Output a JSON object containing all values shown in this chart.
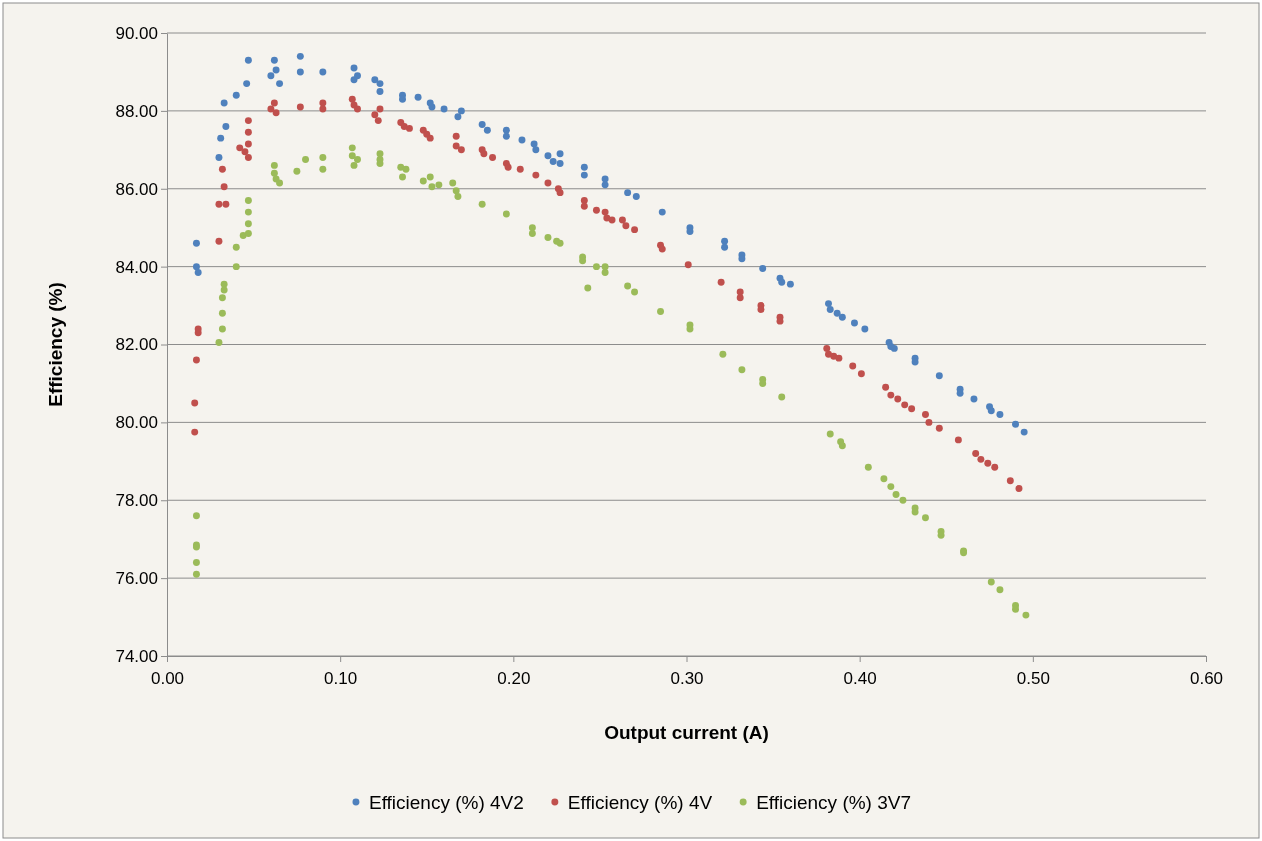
{
  "chart_data": {
    "type": "scatter",
    "xlabel": "Output current (A)",
    "ylabel": "Efficiency (%)",
    "xlim": [
      0,
      0.6
    ],
    "xticks": [
      {
        "value": 0,
        "label": "0.00"
      },
      {
        "value": 0.1,
        "label": "0.10"
      },
      {
        "value": 0.2,
        "label": "0.20"
      },
      {
        "value": 0.3,
        "label": "0.30"
      },
      {
        "value": 0.4,
        "label": "0.40"
      },
      {
        "value": 0.5,
        "label": "0.50"
      },
      {
        "value": 0.6,
        "label": "0.60"
      }
    ],
    "ylim": [
      74,
      90
    ],
    "yticks": [
      {
        "value": 74,
        "label": "74.00"
      },
      {
        "value": 76,
        "label": "76.00"
      },
      {
        "value": 78,
        "label": "78.00"
      },
      {
        "value": 80,
        "label": "80.00"
      },
      {
        "value": 82,
        "label": "82.00"
      },
      {
        "value": 84,
        "label": "84.00"
      },
      {
        "value": 86,
        "label": "86.00"
      },
      {
        "value": 88,
        "label": "88.00"
      },
      {
        "value": 90,
        "label": "90.00"
      }
    ],
    "grid": "y",
    "legend": "bottom",
    "marker": "circle",
    "series": [
      {
        "name": "Efficiency (%) 4V2",
        "color": "#4f81bd",
        "x": [
          0.017,
          0.017,
          0.018,
          0.03,
          0.031,
          0.033,
          0.034,
          0.04,
          0.046,
          0.047,
          0.06,
          0.062,
          0.063,
          0.065,
          0.077,
          0.077,
          0.09,
          0.108,
          0.108,
          0.11,
          0.12,
          0.123,
          0.123,
          0.136,
          0.136,
          0.145,
          0.152,
          0.153,
          0.16,
          0.168,
          0.17,
          0.182,
          0.185,
          0.196,
          0.196,
          0.205,
          0.212,
          0.213,
          0.22,
          0.223,
          0.227,
          0.227,
          0.241,
          0.241,
          0.253,
          0.253,
          0.266,
          0.271,
          0.286,
          0.302,
          0.302,
          0.322,
          0.322,
          0.332,
          0.332,
          0.344,
          0.354,
          0.355,
          0.36,
          0.382,
          0.383,
          0.387,
          0.39,
          0.397,
          0.403,
          0.417,
          0.418,
          0.42,
          0.432,
          0.432,
          0.446,
          0.458,
          0.458,
          0.466,
          0.475,
          0.476,
          0.481,
          0.49,
          0.495
        ],
        "values": [
          84.6,
          84.0,
          83.85,
          86.8,
          87.3,
          88.2,
          87.6,
          88.4,
          88.7,
          89.3,
          88.9,
          89.3,
          89.05,
          88.7,
          89.4,
          89.0,
          89.0,
          89.1,
          88.8,
          88.9,
          88.8,
          88.5,
          88.7,
          88.4,
          88.3,
          88.35,
          88.2,
          88.1,
          88.05,
          87.85,
          88.0,
          87.65,
          87.5,
          87.5,
          87.35,
          87.25,
          87.15,
          87.0,
          86.85,
          86.7,
          86.9,
          86.65,
          86.55,
          86.35,
          86.25,
          86.1,
          85.9,
          85.8,
          85.4,
          85.0,
          84.9,
          84.65,
          84.5,
          84.3,
          84.2,
          83.95,
          83.7,
          83.6,
          83.55,
          83.05,
          82.9,
          82.8,
          82.7,
          82.55,
          82.4,
          82.05,
          81.95,
          81.9,
          81.65,
          81.55,
          81.2,
          80.85,
          80.75,
          80.6,
          80.4,
          80.3,
          80.2,
          79.95,
          79.75
        ]
      },
      {
        "name": "Efficiency (%) 4V",
        "color": "#c0504d",
        "x": [
          0.016,
          0.016,
          0.017,
          0.018,
          0.018,
          0.03,
          0.03,
          0.032,
          0.033,
          0.034,
          0.042,
          0.045,
          0.047,
          0.047,
          0.047,
          0.047,
          0.06,
          0.062,
          0.063,
          0.077,
          0.09,
          0.09,
          0.107,
          0.108,
          0.11,
          0.12,
          0.122,
          0.123,
          0.135,
          0.137,
          0.14,
          0.148,
          0.15,
          0.152,
          0.167,
          0.167,
          0.17,
          0.182,
          0.183,
          0.188,
          0.196,
          0.197,
          0.204,
          0.213,
          0.22,
          0.226,
          0.227,
          0.241,
          0.241,
          0.248,
          0.253,
          0.254,
          0.257,
          0.263,
          0.265,
          0.27,
          0.285,
          0.286,
          0.301,
          0.32,
          0.331,
          0.331,
          0.343,
          0.343,
          0.354,
          0.354,
          0.381,
          0.382,
          0.385,
          0.388,
          0.396,
          0.401,
          0.415,
          0.418,
          0.422,
          0.426,
          0.43,
          0.438,
          0.44,
          0.446,
          0.457,
          0.467,
          0.47,
          0.474,
          0.478,
          0.487,
          0.492
        ],
        "values": [
          80.5,
          79.75,
          81.6,
          82.3,
          82.4,
          84.65,
          85.6,
          86.5,
          86.05,
          85.6,
          87.05,
          86.95,
          87.75,
          87.45,
          87.15,
          86.8,
          88.05,
          88.2,
          87.95,
          88.1,
          88.2,
          88.05,
          88.3,
          88.15,
          88.05,
          87.9,
          87.75,
          88.05,
          87.7,
          87.6,
          87.55,
          87.5,
          87.4,
          87.3,
          87.35,
          87.1,
          87.0,
          87.0,
          86.9,
          86.8,
          86.65,
          86.55,
          86.5,
          86.35,
          86.15,
          86.0,
          85.9,
          85.7,
          85.55,
          85.45,
          85.4,
          85.25,
          85.2,
          85.2,
          85.05,
          84.95,
          84.55,
          84.45,
          84.05,
          83.6,
          83.35,
          83.2,
          83.0,
          82.9,
          82.7,
          82.6,
          81.9,
          81.75,
          81.7,
          81.65,
          81.45,
          81.25,
          80.9,
          80.7,
          80.6,
          80.45,
          80.35,
          80.2,
          80.0,
          79.85,
          79.55,
          79.2,
          79.05,
          78.95,
          78.85,
          78.5,
          78.3
        ]
      },
      {
        "name": "Efficiency (%) 3V7",
        "color": "#9bbb59",
        "x": [
          0.017,
          0.017,
          0.017,
          0.017,
          0.017,
          0.03,
          0.032,
          0.032,
          0.032,
          0.033,
          0.033,
          0.04,
          0.04,
          0.044,
          0.047,
          0.047,
          0.047,
          0.047,
          0.062,
          0.062,
          0.063,
          0.065,
          0.075,
          0.08,
          0.09,
          0.09,
          0.107,
          0.107,
          0.108,
          0.11,
          0.123,
          0.123,
          0.123,
          0.135,
          0.136,
          0.138,
          0.148,
          0.152,
          0.153,
          0.157,
          0.165,
          0.167,
          0.168,
          0.182,
          0.196,
          0.211,
          0.211,
          0.22,
          0.225,
          0.227,
          0.24,
          0.24,
          0.243,
          0.248,
          0.253,
          0.253,
          0.266,
          0.27,
          0.285,
          0.302,
          0.302,
          0.321,
          0.332,
          0.344,
          0.344,
          0.355,
          0.383,
          0.389,
          0.39,
          0.405,
          0.414,
          0.418,
          0.421,
          0.425,
          0.432,
          0.432,
          0.438,
          0.447,
          0.447,
          0.46,
          0.46,
          0.476,
          0.481,
          0.49,
          0.49,
          0.496
        ],
        "values": [
          77.6,
          76.85,
          76.8,
          76.4,
          76.1,
          82.05,
          82.4,
          82.8,
          83.2,
          83.55,
          83.4,
          84.0,
          84.5,
          84.8,
          84.85,
          85.1,
          85.4,
          85.7,
          86.6,
          86.4,
          86.25,
          86.15,
          86.45,
          86.75,
          86.8,
          86.5,
          87.05,
          86.85,
          86.6,
          86.75,
          86.9,
          86.75,
          86.65,
          86.55,
          86.3,
          86.5,
          86.2,
          86.3,
          86.05,
          86.1,
          86.15,
          85.95,
          85.8,
          85.6,
          85.35,
          85.0,
          84.85,
          84.75,
          84.65,
          84.6,
          84.25,
          84.15,
          83.45,
          84.0,
          84.0,
          83.85,
          83.5,
          83.35,
          82.85,
          82.5,
          82.4,
          81.75,
          81.35,
          81.1,
          81.0,
          80.65,
          79.7,
          79.5,
          79.4,
          78.85,
          78.55,
          78.35,
          78.15,
          78.0,
          77.8,
          77.7,
          77.55,
          77.2,
          77.1,
          76.7,
          76.65,
          75.9,
          75.7,
          75.3,
          75.2,
          75.05
        ]
      }
    ]
  }
}
